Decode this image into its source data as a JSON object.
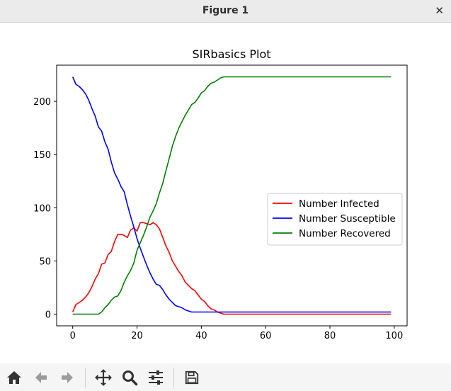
{
  "window": {
    "title": "Figure 1"
  },
  "toolbar": {
    "buttons": [
      {
        "icon": "home-icon"
      },
      {
        "icon": "back-arrow-icon"
      },
      {
        "icon": "forward-arrow-icon"
      },
      {
        "icon": "pan-icon"
      },
      {
        "icon": "zoom-icon"
      },
      {
        "icon": "configure-subplots-icon"
      },
      {
        "icon": "save-icon"
      }
    ]
  },
  "chart_data": {
    "type": "line",
    "title": "SIRbasics Plot",
    "xlabel": "",
    "ylabel": "",
    "xlim": [
      -5,
      104
    ],
    "ylim": [
      -11,
      234
    ],
    "xticks": [
      0,
      20,
      40,
      60,
      80,
      100
    ],
    "yticks": [
      0,
      50,
      100,
      150,
      200
    ],
    "grid": false,
    "legend_position": "center-right",
    "series": [
      {
        "name": "Number Infected",
        "color": "#ff0000",
        "x": [
          0,
          1,
          2,
          3,
          4,
          5,
          6,
          7,
          8,
          9,
          10,
          11,
          12,
          13,
          14,
          15,
          16,
          17,
          18,
          19,
          20,
          21,
          22,
          23,
          24,
          25,
          26,
          27,
          28,
          29,
          30,
          31,
          32,
          33,
          34,
          35,
          36,
          37,
          38,
          39,
          40,
          41,
          42,
          43,
          44,
          45,
          46,
          47,
          48,
          49,
          50,
          55,
          60,
          65,
          70,
          75,
          80,
          85,
          90,
          95,
          99
        ],
        "y": [
          2,
          9,
          11,
          13,
          16,
          20,
          26,
          33,
          38,
          47,
          48,
          56,
          59,
          68,
          75,
          75,
          74,
          72,
          79,
          81,
          78,
          86,
          86,
          85,
          84,
          86,
          84,
          80,
          72,
          64,
          58,
          50,
          45,
          40,
          36,
          30,
          27,
          24,
          22,
          18,
          14,
          12,
          8,
          5,
          4,
          2,
          1,
          0,
          0,
          0,
          0,
          0,
          0,
          0,
          0,
          0,
          0,
          0,
          0,
          0,
          0
        ]
      },
      {
        "name": "Number Susceptible",
        "color": "#0000ff",
        "x": [
          0,
          1,
          2,
          3,
          4,
          5,
          6,
          7,
          8,
          9,
          10,
          11,
          12,
          13,
          14,
          15,
          16,
          17,
          18,
          19,
          20,
          21,
          22,
          23,
          24,
          25,
          26,
          27,
          28,
          29,
          30,
          31,
          32,
          33,
          34,
          35,
          36,
          37,
          38,
          39,
          40,
          45,
          50,
          55,
          60,
          65,
          70,
          75,
          80,
          85,
          90,
          95,
          99
        ],
        "y": [
          223,
          216,
          214,
          211,
          207,
          201,
          193,
          186,
          176,
          172,
          162,
          155,
          143,
          133,
          127,
          120,
          115,
          103,
          92,
          82,
          71,
          62,
          54,
          46,
          39,
          33,
          28,
          27,
          23,
          18,
          14,
          11,
          8,
          7,
          6,
          4,
          3,
          2,
          2,
          2,
          2,
          2,
          2,
          2,
          2,
          2,
          2,
          2,
          2,
          2,
          2,
          2,
          2
        ]
      },
      {
        "name": "Number Recovered",
        "color": "#008000",
        "x": [
          0,
          1,
          2,
          3,
          4,
          5,
          6,
          7,
          8,
          9,
          10,
          11,
          12,
          13,
          14,
          15,
          16,
          17,
          18,
          19,
          20,
          21,
          22,
          23,
          24,
          25,
          26,
          27,
          28,
          29,
          30,
          31,
          32,
          33,
          34,
          35,
          36,
          37,
          38,
          39,
          40,
          41,
          42,
          43,
          44,
          45,
          46,
          47,
          48,
          49,
          50,
          55,
          60,
          65,
          70,
          75,
          80,
          85,
          90,
          95,
          99
        ],
        "y": [
          0,
          0,
          0,
          0,
          0,
          0,
          0,
          0,
          0,
          2,
          6,
          9,
          13,
          16,
          17,
          22,
          30,
          36,
          41,
          48,
          60,
          67,
          74,
          82,
          91,
          97,
          104,
          114,
          123,
          135,
          146,
          158,
          167,
          175,
          181,
          187,
          192,
          197,
          199,
          203,
          208,
          210,
          214,
          217,
          218,
          220,
          222,
          223,
          223,
          223,
          223,
          223,
          223,
          223,
          223,
          223,
          223,
          223,
          223,
          223,
          223
        ]
      }
    ]
  }
}
